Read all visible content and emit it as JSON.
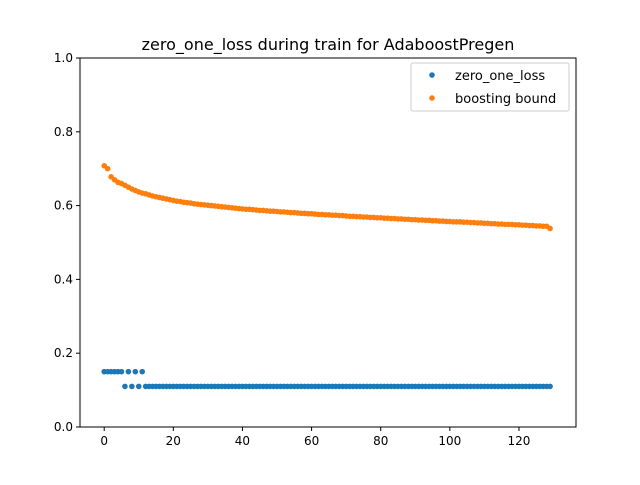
{
  "chart_data": {
    "type": "scatter",
    "title": "zero_one_loss during train for AdaboostPregen",
    "xlabel": "",
    "ylabel": "",
    "xlim": [
      -7,
      136.5
    ],
    "ylim": [
      0,
      1
    ],
    "x_ticks": [
      0,
      20,
      40,
      60,
      80,
      100,
      120
    ],
    "y_ticks": [
      0.0,
      0.2,
      0.4,
      0.6,
      0.8,
      1.0
    ],
    "x_tick_labels": [
      "0",
      "20",
      "40",
      "60",
      "80",
      "100",
      "120"
    ],
    "y_tick_labels": [
      "0.0",
      "0.2",
      "0.4",
      "0.6",
      "0.8",
      "1.0"
    ],
    "grid": false,
    "legend_position": "top-right",
    "series": [
      {
        "name": "zero_one_loss",
        "color": "#1f77b4",
        "x": [
          0,
          1,
          2,
          3,
          4,
          5,
          6,
          7,
          8,
          9,
          10,
          11,
          12,
          13,
          14,
          15,
          16,
          17,
          18,
          19,
          20,
          21,
          22,
          23,
          24,
          25,
          26,
          27,
          28,
          29,
          30,
          31,
          32,
          33,
          34,
          35,
          36,
          37,
          38,
          39,
          40,
          41,
          42,
          43,
          44,
          45,
          46,
          47,
          48,
          49,
          50,
          51,
          52,
          53,
          54,
          55,
          56,
          57,
          58,
          59,
          60,
          61,
          62,
          63,
          64,
          65,
          66,
          67,
          68,
          69,
          70,
          71,
          72,
          73,
          74,
          75,
          76,
          77,
          78,
          79,
          80,
          81,
          82,
          83,
          84,
          85,
          86,
          87,
          88,
          89,
          90,
          91,
          92,
          93,
          94,
          95,
          96,
          97,
          98,
          99,
          100,
          101,
          102,
          103,
          104,
          105,
          106,
          107,
          108,
          109,
          110,
          111,
          112,
          113,
          114,
          115,
          116,
          117,
          118,
          119,
          120,
          121,
          122,
          123,
          124,
          125,
          126,
          127,
          128,
          129
        ],
        "y": [
          0.15,
          0.15,
          0.15,
          0.15,
          0.15,
          0.15,
          0.11,
          0.15,
          0.11,
          0.15,
          0.11,
          0.15,
          0.11,
          0.11,
          0.11,
          0.11,
          0.11,
          0.11,
          0.11,
          0.11,
          0.11,
          0.11,
          0.11,
          0.11,
          0.11,
          0.11,
          0.11,
          0.11,
          0.11,
          0.11,
          0.11,
          0.11,
          0.11,
          0.11,
          0.11,
          0.11,
          0.11,
          0.11,
          0.11,
          0.11,
          0.11,
          0.11,
          0.11,
          0.11,
          0.11,
          0.11,
          0.11,
          0.11,
          0.11,
          0.11,
          0.11,
          0.11,
          0.11,
          0.11,
          0.11,
          0.11,
          0.11,
          0.11,
          0.11,
          0.11,
          0.11,
          0.11,
          0.11,
          0.11,
          0.11,
          0.11,
          0.11,
          0.11,
          0.11,
          0.11,
          0.11,
          0.11,
          0.11,
          0.11,
          0.11,
          0.11,
          0.11,
          0.11,
          0.11,
          0.11,
          0.11,
          0.11,
          0.11,
          0.11,
          0.11,
          0.11,
          0.11,
          0.11,
          0.11,
          0.11,
          0.11,
          0.11,
          0.11,
          0.11,
          0.11,
          0.11,
          0.11,
          0.11,
          0.11,
          0.11,
          0.11,
          0.11,
          0.11,
          0.11,
          0.11,
          0.11,
          0.11,
          0.11,
          0.11,
          0.11,
          0.11,
          0.11,
          0.11,
          0.11,
          0.11,
          0.11,
          0.11,
          0.11,
          0.11,
          0.11,
          0.11,
          0.11,
          0.11,
          0.11,
          0.11,
          0.11,
          0.11,
          0.11,
          0.11,
          0.11
        ]
      },
      {
        "name": "boosting bound",
        "color": "#ff7f0e",
        "x": [
          0,
          1,
          2,
          3,
          4,
          5,
          6,
          7,
          8,
          9,
          10,
          11,
          12,
          13,
          14,
          15,
          16,
          17,
          18,
          19,
          20,
          21,
          22,
          23,
          24,
          25,
          26,
          27,
          28,
          29,
          30,
          31,
          32,
          33,
          34,
          35,
          36,
          37,
          38,
          39,
          40,
          41,
          42,
          43,
          44,
          45,
          46,
          47,
          48,
          49,
          50,
          51,
          52,
          53,
          54,
          55,
          56,
          57,
          58,
          59,
          60,
          61,
          62,
          63,
          64,
          65,
          66,
          67,
          68,
          69,
          70,
          71,
          72,
          73,
          74,
          75,
          76,
          77,
          78,
          79,
          80,
          81,
          82,
          83,
          84,
          85,
          86,
          87,
          88,
          89,
          90,
          91,
          92,
          93,
          94,
          95,
          96,
          97,
          98,
          99,
          100,
          101,
          102,
          103,
          104,
          105,
          106,
          107,
          108,
          109,
          110,
          111,
          112,
          113,
          114,
          115,
          116,
          117,
          118,
          119,
          120,
          121,
          122,
          123,
          124,
          125,
          126,
          127,
          128,
          129
        ],
        "y": [
          0.708,
          0.7,
          0.678,
          0.67,
          0.663,
          0.66,
          0.655,
          0.65,
          0.645,
          0.641,
          0.637,
          0.634,
          0.632,
          0.629,
          0.626,
          0.624,
          0.622,
          0.62,
          0.618,
          0.616,
          0.614,
          0.612,
          0.611,
          0.609,
          0.608,
          0.607,
          0.605,
          0.604,
          0.603,
          0.602,
          0.601,
          0.6,
          0.599,
          0.598,
          0.597,
          0.596,
          0.595,
          0.594,
          0.593,
          0.592,
          0.591,
          0.59,
          0.59,
          0.589,
          0.588,
          0.587,
          0.587,
          0.586,
          0.585,
          0.585,
          0.584,
          0.583,
          0.583,
          0.582,
          0.581,
          0.581,
          0.58,
          0.579,
          0.579,
          0.578,
          0.578,
          0.577,
          0.576,
          0.576,
          0.575,
          0.575,
          0.574,
          0.574,
          0.573,
          0.573,
          0.572,
          0.571,
          0.571,
          0.57,
          0.57,
          0.569,
          0.569,
          0.568,
          0.568,
          0.567,
          0.567,
          0.566,
          0.566,
          0.565,
          0.565,
          0.564,
          0.564,
          0.563,
          0.563,
          0.562,
          0.562,
          0.561,
          0.561,
          0.56,
          0.56,
          0.559,
          0.559,
          0.558,
          0.558,
          0.557,
          0.557,
          0.556,
          0.556,
          0.556,
          0.555,
          0.555,
          0.554,
          0.554,
          0.553,
          0.553,
          0.552,
          0.552,
          0.551,
          0.551,
          0.55,
          0.55,
          0.549,
          0.549,
          0.549,
          0.548,
          0.548,
          0.547,
          0.547,
          0.546,
          0.546,
          0.545,
          0.545,
          0.544,
          0.544,
          0.538
        ]
      }
    ]
  }
}
